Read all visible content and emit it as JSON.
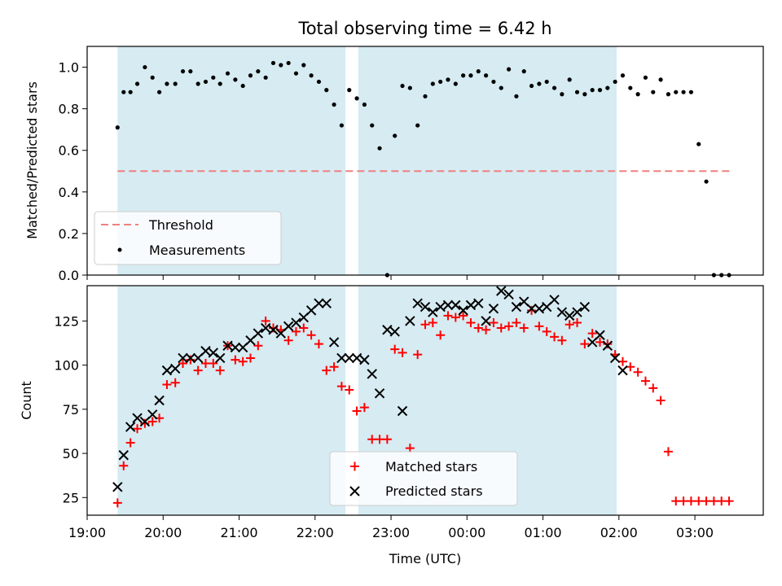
{
  "title": "Total observing time = 6.42 h",
  "xlabel": "Time (UTC)",
  "chart_data": [
    {
      "type": "scatter",
      "ylabel": "Matched/Predicted stars",
      "ylim": [
        0,
        1.1
      ],
      "yticks": [
        0.0,
        0.2,
        0.4,
        0.6,
        0.8,
        1.0
      ],
      "xlim": [
        19.0,
        3.9
      ],
      "threshold": {
        "name": "Threshold",
        "y": 0.5,
        "x_start": 19.4,
        "x_end": 3.5,
        "color": "#f08080"
      },
      "series": [
        {
          "name": "Measurements",
          "color": "#000000",
          "x": [
            19.4,
            19.48,
            19.57,
            19.66,
            19.76,
            19.86,
            19.95,
            20.05,
            20.16,
            20.26,
            20.36,
            20.46,
            20.56,
            20.66,
            20.75,
            20.85,
            20.95,
            21.05,
            21.15,
            21.25,
            21.35,
            21.45,
            21.55,
            21.65,
            21.75,
            21.85,
            21.95,
            22.05,
            22.15,
            22.25,
            22.35,
            22.45,
            22.55,
            22.65,
            22.75,
            22.85,
            22.95,
            23.05,
            23.15,
            23.25,
            23.35,
            23.45,
            23.55,
            23.65,
            23.75,
            23.85,
            23.95,
            0.05,
            0.15,
            0.25,
            0.35,
            0.45,
            0.55,
            0.65,
            0.75,
            0.85,
            0.95,
            1.05,
            1.15,
            1.25,
            1.35,
            1.45,
            1.55,
            1.65,
            1.75,
            1.85,
            1.95,
            2.05,
            2.15,
            2.25,
            2.35,
            2.45,
            2.55,
            2.65,
            2.75,
            2.85,
            2.95,
            3.05,
            3.15,
            3.25,
            3.35,
            3.45
          ],
          "y": [
            0.71,
            0.88,
            0.88,
            0.92,
            1.0,
            0.95,
            0.88,
            0.92,
            0.92,
            0.98,
            0.98,
            0.92,
            0.93,
            0.95,
            0.92,
            0.97,
            0.94,
            0.91,
            0.96,
            0.98,
            0.95,
            1.02,
            1.01,
            1.02,
            0.97,
            1.01,
            0.96,
            0.93,
            0.89,
            0.82,
            0.72,
            0.89,
            0.85,
            0.82,
            0.72,
            0.61,
            0.0,
            0.67,
            0.91,
            0.9,
            0.72,
            0.86,
            0.92,
            0.93,
            0.94,
            0.92,
            0.96,
            0.96,
            0.98,
            0.96,
            0.93,
            0.9,
            0.99,
            0.86,
            0.98,
            0.91,
            0.92,
            0.93,
            0.9,
            0.87,
            0.94,
            0.88,
            0.87,
            0.89,
            0.89,
            0.9,
            0.93,
            0.96,
            0.9,
            0.87,
            0.95,
            0.88,
            0.94,
            0.87,
            0.88,
            0.88,
            0.88,
            0.63,
            0.45,
            0.0,
            0.0,
            0.0
          ]
        }
      ],
      "legend": {
        "placement": "lower-left",
        "entries": [
          "Threshold",
          "Measurements"
        ]
      }
    },
    {
      "type": "scatter",
      "ylabel": "Count",
      "ylim": [
        15,
        145
      ],
      "yticks": [
        25,
        50,
        75,
        100,
        125
      ],
      "xlim": [
        19.0,
        3.9
      ],
      "xticks": [
        "19:00",
        "20:00",
        "21:00",
        "22:00",
        "23:00",
        "00:00",
        "01:00",
        "02:00",
        "03:00"
      ],
      "series": [
        {
          "name": "Matched stars",
          "marker": "+",
          "color": "#ff0000",
          "x": [
            19.4,
            19.48,
            19.57,
            19.66,
            19.76,
            19.86,
            19.95,
            20.05,
            20.16,
            20.26,
            20.36,
            20.46,
            20.56,
            20.66,
            20.75,
            20.85,
            20.95,
            21.05,
            21.15,
            21.25,
            21.35,
            21.45,
            21.55,
            21.65,
            21.75,
            21.85,
            21.95,
            22.05,
            22.15,
            22.25,
            22.35,
            22.45,
            22.55,
            22.65,
            22.75,
            22.85,
            22.95,
            23.05,
            23.15,
            23.25,
            23.35,
            23.45,
            23.55,
            23.65,
            23.75,
            23.85,
            23.95,
            0.05,
            0.15,
            0.25,
            0.35,
            0.45,
            0.55,
            0.65,
            0.75,
            0.85,
            0.95,
            1.05,
            1.15,
            1.25,
            1.35,
            1.45,
            1.55,
            1.65,
            1.75,
            1.85,
            1.95,
            2.05,
            2.15,
            2.25,
            2.35,
            2.45,
            2.55,
            2.65,
            2.75,
            2.85,
            2.95,
            3.05,
            3.15,
            3.25,
            3.35,
            3.45
          ],
          "y": [
            22,
            43,
            56,
            64,
            67,
            68,
            70,
            89,
            90,
            101,
            103,
            97,
            101,
            101,
            97,
            111,
            103,
            102,
            104,
            111,
            125,
            121,
            120,
            114,
            119,
            121,
            117,
            112,
            97,
            99,
            88,
            86,
            74,
            76,
            58,
            58,
            58,
            109,
            107,
            53,
            106,
            123,
            124,
            117,
            128,
            127,
            128,
            124,
            121,
            120,
            124,
            121,
            122,
            124,
            121,
            131,
            122,
            119,
            116,
            114,
            123,
            124,
            112,
            118,
            113,
            112,
            106,
            102,
            99,
            96,
            91,
            87,
            80,
            51,
            23,
            23,
            23,
            23,
            23,
            23,
            23,
            23
          ]
        },
        {
          "name": "Predicted stars",
          "marker": "x",
          "color": "#000000",
          "x": [
            19.4,
            19.48,
            19.57,
            19.66,
            19.76,
            19.86,
            19.95,
            20.05,
            20.16,
            20.26,
            20.36,
            20.46,
            20.56,
            20.66,
            20.75,
            20.85,
            20.95,
            21.05,
            21.15,
            21.25,
            21.35,
            21.45,
            21.55,
            21.65,
            21.75,
            21.85,
            21.95,
            22.05,
            22.15,
            22.25,
            22.35,
            22.45,
            22.55,
            22.65,
            22.75,
            22.85,
            22.95,
            23.05,
            23.15,
            23.25,
            23.35,
            23.45,
            23.55,
            23.65,
            23.75,
            23.85,
            23.95,
            0.05,
            0.15,
            0.25,
            0.35,
            0.45,
            0.55,
            0.65,
            0.75,
            0.85,
            0.95,
            1.05,
            1.15,
            1.25,
            1.35,
            1.45,
            1.55,
            1.65,
            1.75,
            1.85,
            1.95,
            2.05
          ],
          "y": [
            31,
            49,
            65,
            70,
            68,
            72,
            80,
            97,
            98,
            104,
            104,
            104,
            108,
            107,
            104,
            111,
            110,
            110,
            114,
            118,
            121,
            120,
            118,
            122,
            124,
            127,
            131,
            135,
            135,
            113,
            104,
            104,
            104,
            103,
            95,
            84,
            120,
            119,
            74,
            125,
            135,
            133,
            130,
            133,
            134,
            134,
            131,
            134,
            135,
            125,
            132,
            142,
            140,
            133,
            136,
            132,
            132,
            133,
            137,
            130,
            128,
            130,
            133,
            113,
            117,
            111,
            104,
            97
          ]
        }
      ],
      "legend": {
        "placement": "lower-center",
        "entries": [
          "Matched stars",
          "Predicted stars"
        ]
      }
    }
  ],
  "spans": [
    {
      "start": 19.4,
      "end": 22.4,
      "color": "#add8e6"
    },
    {
      "start": 22.57,
      "end": 1.97,
      "color": "#add8e6"
    }
  ]
}
